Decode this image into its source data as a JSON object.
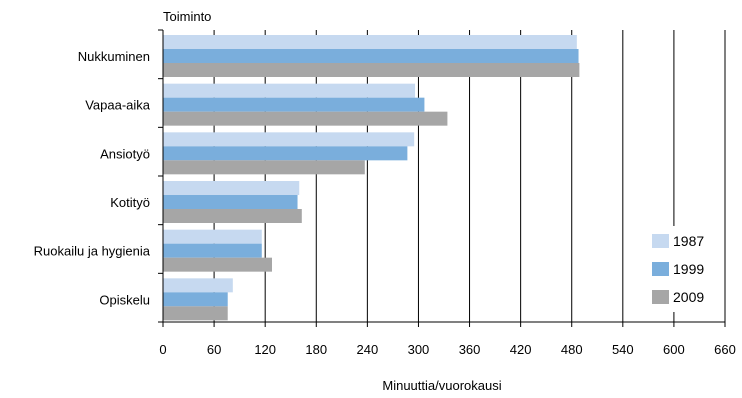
{
  "chart_data": {
    "type": "bar",
    "orientation": "horizontal",
    "title": "Toiminto",
    "xlabel": "Minuuttia/vuorokausi",
    "ylabel": "",
    "xlim": [
      0,
      660
    ],
    "xticks": [
      0,
      60,
      120,
      180,
      240,
      300,
      360,
      420,
      480,
      540,
      600,
      660
    ],
    "grid": "vertical",
    "legend_position": "bottom-right",
    "categories": [
      "Nukkuminen",
      "Vapaa-aika",
      "Ansiotyö",
      "Kotityö",
      "Ruokailu ja hygienia",
      "Opiskelu"
    ],
    "series": [
      {
        "name": "1987",
        "color": "#c6d9f0",
        "values": [
          486,
          296,
          295,
          160,
          116,
          82
        ]
      },
      {
        "name": "1999",
        "color": "#7aaedc",
        "values": [
          488,
          307,
          287,
          158,
          116,
          76
        ]
      },
      {
        "name": "2009",
        "color": "#a6a6a6",
        "values": [
          489,
          334,
          237,
          163,
          128,
          76
        ]
      }
    ]
  }
}
